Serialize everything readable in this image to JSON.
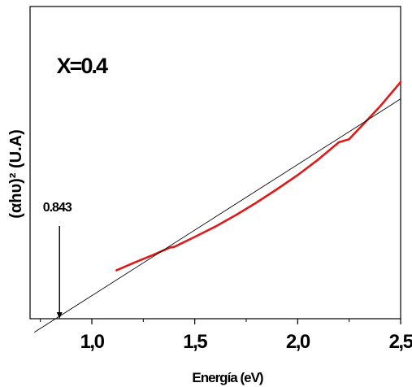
{
  "chart_data": {
    "type": "line",
    "title": "",
    "xlabel": "Energía (eV)",
    "ylabel": "(αhυ)² (U.A)",
    "xlim": [
      0.7,
      2.5
    ],
    "ylim": [
      0,
      1
    ],
    "grid": false,
    "x_ticks": [
      1.0,
      1.5,
      2.0,
      2.5
    ],
    "x_tick_labels": [
      "1,0",
      "1,5",
      "2,0",
      "2,5"
    ],
    "series": [
      {
        "color": "#e01818",
        "x": [
          1.12,
          1.2,
          1.3,
          1.38,
          1.4,
          1.5,
          1.6,
          1.7,
          1.8,
          1.9,
          2.0,
          2.1,
          2.2,
          2.25,
          2.3,
          2.4,
          2.5
        ],
        "y": [
          0.155,
          0.178,
          0.205,
          0.228,
          0.23,
          0.262,
          0.295,
          0.332,
          0.372,
          0.415,
          0.46,
          0.51,
          0.565,
          0.575,
          0.61,
          0.68,
          0.758
        ]
      },
      {
        "color": "#000000",
        "style": "thin",
        "x": [
          0.722,
          2.5
        ],
        "y": [
          -0.043,
          0.704
        ]
      }
    ],
    "annotations": [
      {
        "text": "X=0.4",
        "x": 0.95,
        "y": 0.787
      },
      {
        "text": "0.843",
        "x": 0.843,
        "y": 0.0,
        "arrow": true
      }
    ]
  }
}
